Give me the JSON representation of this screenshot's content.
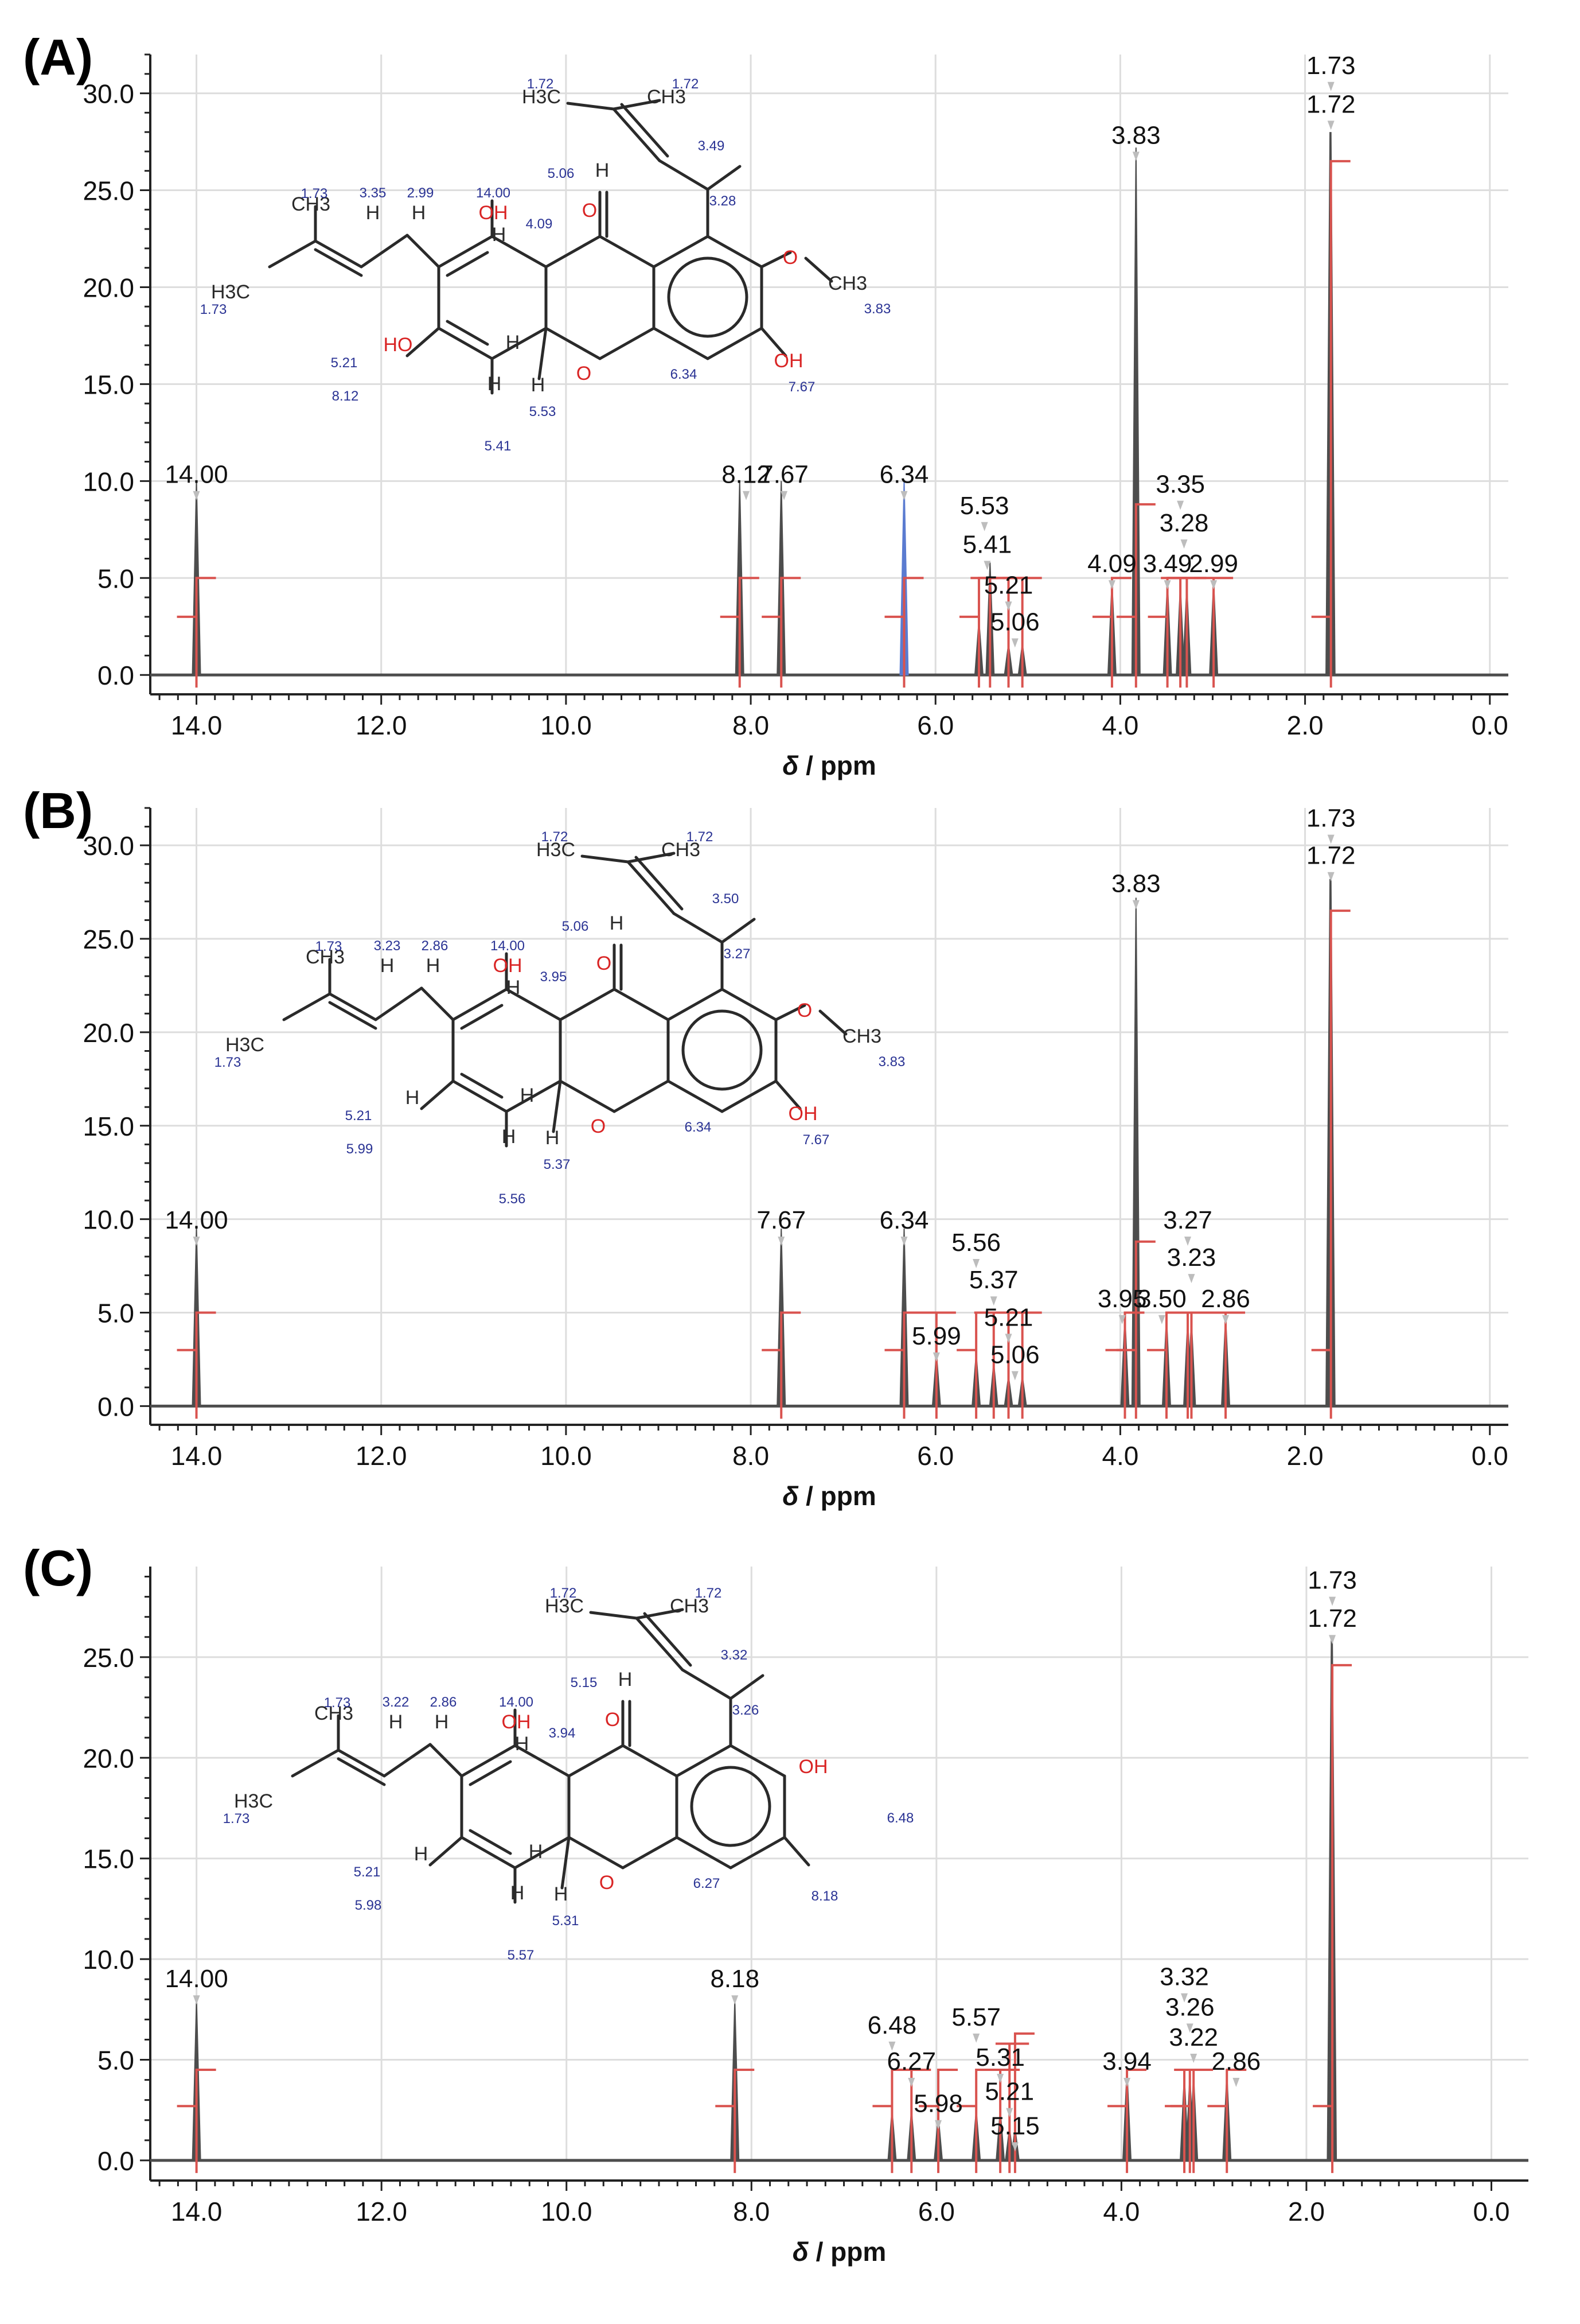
{
  "xlabel_italic": "δ",
  "xlabel_unit": " / ppm",
  "panels": [
    {
      "label": "(A)",
      "chart_data": {
        "type": "line",
        "xlabel": "δ / ppm",
        "xlim": [
          14.5,
          -0.2
        ],
        "ylim": [
          -1,
          32
        ],
        "xticks": [
          "14.0",
          "12.0",
          "10.0",
          "8.0",
          "6.0",
          "4.0",
          "2.0",
          "0.0"
        ],
        "yticks": [
          "0.0",
          "5.0",
          "10.0",
          "15.0",
          "20.0",
          "25.0",
          "30.0"
        ],
        "peaks": [
          {
            "ppm": 14.0,
            "height": 10.0
          },
          {
            "ppm": 8.12,
            "height": 10.0
          },
          {
            "ppm": 7.67,
            "height": 10.0
          },
          {
            "ppm": 6.34,
            "height": 10.0
          },
          {
            "ppm": 5.53,
            "height": 2.8
          },
          {
            "ppm": 5.41,
            "height": 5.8
          },
          {
            "ppm": 5.21,
            "height": 1.6
          },
          {
            "ppm": 5.06,
            "height": 1.6
          },
          {
            "ppm": 4.09,
            "height": 4.8
          },
          {
            "ppm": 3.83,
            "height": 27.2
          },
          {
            "ppm": 3.49,
            "height": 4.8
          },
          {
            "ppm": 3.35,
            "height": 4.6
          },
          {
            "ppm": 3.28,
            "height": 4.6
          },
          {
            "ppm": 2.99,
            "height": 4.8
          },
          {
            "ppm": 1.73,
            "height": 28.0
          },
          {
            "ppm": 1.72,
            "height": 28.0
          }
        ],
        "peak_labels": [
          {
            "text": "14.00",
            "ppm": 14.0,
            "y": 9.9
          },
          {
            "text": "8.12",
            "ppm": 8.05,
            "y": 9.9
          },
          {
            "text": "7.67",
            "ppm": 7.64,
            "y": 9.9
          },
          {
            "text": "6.34",
            "ppm": 6.34,
            "y": 9.9
          },
          {
            "text": "5.53",
            "ppm": 5.47,
            "y": 8.3
          },
          {
            "text": "5.41",
            "ppm": 5.44,
            "y": 6.3
          },
          {
            "text": "5.21",
            "ppm": 5.21,
            "y": 4.2
          },
          {
            "text": "5.06",
            "ppm": 5.14,
            "y": 2.3
          },
          {
            "text": "4.09",
            "ppm": 4.09,
            "y": 5.3
          },
          {
            "text": "3.83",
            "ppm": 3.83,
            "y": 27.4
          },
          {
            "text": "3.49",
            "ppm": 3.49,
            "y": 5.3
          },
          {
            "text": "3.35",
            "ppm": 3.35,
            "y": 9.4
          },
          {
            "text": "3.28",
            "ppm": 3.31,
            "y": 7.4
          },
          {
            "text": "2.99",
            "ppm": 2.99,
            "y": 5.3
          },
          {
            "text": "1.73",
            "ppm": 1.72,
            "y": 31.0
          },
          {
            "text": "1.72",
            "ppm": 1.72,
            "y": 29.0
          }
        ],
        "integrals": [
          {
            "ppm": 14.0,
            "level": 3.0,
            "top": 5.0
          },
          {
            "ppm": 8.12,
            "level": 3.0,
            "top": 5.0
          },
          {
            "ppm": 7.67,
            "level": 3.0,
            "top": 5.0
          },
          {
            "ppm": 6.34,
            "level": 3.0,
            "top": 5.0
          },
          {
            "ppm": 5.53,
            "level": 3.0,
            "top": 5.0
          },
          {
            "ppm": 5.41,
            "level": 5.0,
            "top": 5.0
          },
          {
            "ppm": 5.21,
            "level": 5.0,
            "top": 5.0
          },
          {
            "ppm": 5.06,
            "level": 5.0,
            "top": 5.0
          },
          {
            "ppm": 4.09,
            "level": 3.0,
            "top": 5.0
          },
          {
            "ppm": 3.83,
            "level": 3.0,
            "top": 8.8
          },
          {
            "ppm": 3.49,
            "level": 3.0,
            "top": 5.0
          },
          {
            "ppm": 3.35,
            "level": 5.0,
            "top": 5.0
          },
          {
            "ppm": 3.28,
            "level": 5.0,
            "top": 5.0
          },
          {
            "ppm": 2.99,
            "level": 5.0,
            "top": 5.0
          },
          {
            "ppm": 1.72,
            "level": 3.0,
            "top": 26.5
          }
        ]
      },
      "molecule": {
        "atom_labels": [
          {
            "text": "CH3"
          },
          {
            "text": "H3C"
          },
          {
            "text": "H"
          },
          {
            "text": "H"
          },
          {
            "text": "OH"
          },
          {
            "text": "H"
          },
          {
            "text": "HO"
          },
          {
            "text": "H"
          },
          {
            "text": "H"
          },
          {
            "text": "O"
          },
          {
            "text": "O"
          },
          {
            "text": "H"
          },
          {
            "text": "H"
          },
          {
            "text": "H3C"
          },
          {
            "text": "CH3"
          },
          {
            "text": "O"
          },
          {
            "text": "CH3"
          },
          {
            "text": "OH"
          }
        ],
        "shift_labels": [
          "1.73",
          "1.73",
          "3.35",
          "2.99",
          "14.00",
          "4.09",
          "5.21",
          "8.12",
          "5.41",
          "5.53",
          "6.34",
          "1.72",
          "1.72",
          "5.06",
          "3.49",
          "3.28",
          "3.83",
          "7.67"
        ]
      }
    },
    {
      "label": "(B)",
      "chart_data": {
        "type": "line",
        "xlabel": "δ / ppm",
        "xlim": [
          14.5,
          -0.2
        ],
        "ylim": [
          -1,
          32
        ],
        "xticks": [
          "14.0",
          "12.0",
          "10.0",
          "8.0",
          "6.0",
          "4.0",
          "2.0",
          "0.0"
        ],
        "yticks": [
          "0.0",
          "5.0",
          "10.0",
          "15.0",
          "20.0",
          "25.0",
          "30.0"
        ],
        "peaks": [
          {
            "ppm": 14.0,
            "height": 9.5
          },
          {
            "ppm": 7.67,
            "height": 9.5
          },
          {
            "ppm": 6.34,
            "height": 9.5
          },
          {
            "ppm": 5.99,
            "height": 2.8
          },
          {
            "ppm": 5.56,
            "height": 2.8
          },
          {
            "ppm": 5.37,
            "height": 2.3
          },
          {
            "ppm": 5.21,
            "height": 1.6
          },
          {
            "ppm": 5.06,
            "height": 1.6
          },
          {
            "ppm": 3.95,
            "height": 4.8
          },
          {
            "ppm": 3.83,
            "height": 27.2
          },
          {
            "ppm": 3.5,
            "height": 4.8
          },
          {
            "ppm": 3.27,
            "height": 4.6
          },
          {
            "ppm": 3.23,
            "height": 4.6
          },
          {
            "ppm": 2.86,
            "height": 4.8
          },
          {
            "ppm": 1.73,
            "height": 28.2
          },
          {
            "ppm": 1.72,
            "height": 28.2
          }
        ],
        "peak_labels": [
          {
            "text": "14.00",
            "ppm": 14.0,
            "y": 9.5
          },
          {
            "text": "7.67",
            "ppm": 7.67,
            "y": 9.5
          },
          {
            "text": "6.34",
            "ppm": 6.34,
            "y": 9.5
          },
          {
            "text": "5.99",
            "ppm": 5.99,
            "y": 3.3
          },
          {
            "text": "5.56",
            "ppm": 5.56,
            "y": 8.3
          },
          {
            "text": "5.37",
            "ppm": 5.37,
            "y": 6.3
          },
          {
            "text": "5.21",
            "ppm": 5.21,
            "y": 4.3
          },
          {
            "text": "5.06",
            "ppm": 5.14,
            "y": 2.3
          },
          {
            "text": "3.95",
            "ppm": 3.98,
            "y": 5.3
          },
          {
            "text": "3.50",
            "ppm": 3.55,
            "y": 5.3
          },
          {
            "text": "3.83",
            "ppm": 3.83,
            "y": 27.5
          },
          {
            "text": "3.27",
            "ppm": 3.27,
            "y": 9.5
          },
          {
            "text": "3.23",
            "ppm": 3.23,
            "y": 7.5
          },
          {
            "text": "2.86",
            "ppm": 2.86,
            "y": 5.3
          },
          {
            "text": "1.73",
            "ppm": 1.72,
            "y": 31.0
          },
          {
            "text": "1.72",
            "ppm": 1.72,
            "y": 29.0
          }
        ],
        "integrals": [
          {
            "ppm": 14.0,
            "level": 3.0,
            "top": 5.0
          },
          {
            "ppm": 7.67,
            "level": 3.0,
            "top": 5.0
          },
          {
            "ppm": 6.34,
            "level": 3.0,
            "top": 5.0
          },
          {
            "ppm": 5.99,
            "level": 5.0,
            "top": 5.0
          },
          {
            "ppm": 5.56,
            "level": 3.0,
            "top": 5.0
          },
          {
            "ppm": 5.37,
            "level": 5.0,
            "top": 5.0
          },
          {
            "ppm": 5.21,
            "level": 5.0,
            "top": 5.0
          },
          {
            "ppm": 5.06,
            "level": 5.0,
            "top": 5.0
          },
          {
            "ppm": 3.95,
            "level": 3.0,
            "top": 5.0
          },
          {
            "ppm": 3.83,
            "level": 3.0,
            "top": 8.8
          },
          {
            "ppm": 3.5,
            "level": 3.0,
            "top": 5.0
          },
          {
            "ppm": 3.27,
            "level": 5.0,
            "top": 5.0
          },
          {
            "ppm": 3.23,
            "level": 5.0,
            "top": 5.0
          },
          {
            "ppm": 2.86,
            "level": 5.0,
            "top": 5.0
          },
          {
            "ppm": 1.72,
            "level": 3.0,
            "top": 26.5
          }
        ]
      },
      "molecule": {
        "atom_labels": [
          {
            "text": "CH3"
          },
          {
            "text": "H3C"
          },
          {
            "text": "H"
          },
          {
            "text": "H"
          },
          {
            "text": "OH"
          },
          {
            "text": "H"
          },
          {
            "text": "H"
          },
          {
            "text": "H"
          },
          {
            "text": "H"
          },
          {
            "text": "O"
          },
          {
            "text": "O"
          },
          {
            "text": "H"
          },
          {
            "text": "H"
          },
          {
            "text": "H3C"
          },
          {
            "text": "CH3"
          },
          {
            "text": "O"
          },
          {
            "text": "CH3"
          },
          {
            "text": "OH"
          }
        ],
        "shift_labels": [
          "1.73",
          "1.73",
          "3.23",
          "2.86",
          "14.00",
          "3.95",
          "5.21",
          "5.99",
          "5.56",
          "5.37",
          "6.34",
          "1.72",
          "1.72",
          "5.06",
          "3.50",
          "3.27",
          "3.83",
          "7.67"
        ]
      }
    },
    {
      "label": "(C)",
      "chart_data": {
        "type": "line",
        "xlabel": "δ / ppm",
        "xlim": [
          14.5,
          -0.4
        ],
        "ylim": [
          -1,
          29.5
        ],
        "xticks": [
          "14.0",
          "12.0",
          "10.0",
          "8.0",
          "6.0",
          "4.0",
          "2.0",
          "0.0"
        ],
        "yticks": [
          "0.0",
          "5.0",
          "10.0",
          "15.0",
          "20.0",
          "25.0"
        ],
        "peaks": [
          {
            "ppm": 14.0,
            "height": 8.0
          },
          {
            "ppm": 8.18,
            "height": 8.0
          },
          {
            "ppm": 6.48,
            "height": 2.5
          },
          {
            "ppm": 6.27,
            "height": 2.5
          },
          {
            "ppm": 5.98,
            "height": 2.2
          },
          {
            "ppm": 5.57,
            "height": 2.5
          },
          {
            "ppm": 5.31,
            "height": 2.5
          },
          {
            "ppm": 5.21,
            "height": 1.6
          },
          {
            "ppm": 5.15,
            "height": 1.6
          },
          {
            "ppm": 3.94,
            "height": 4.5
          },
          {
            "ppm": 3.32,
            "height": 4.2
          },
          {
            "ppm": 3.26,
            "height": 4.2
          },
          {
            "ppm": 3.22,
            "height": 4.2
          },
          {
            "ppm": 2.86,
            "height": 4.3
          },
          {
            "ppm": 1.73,
            "height": 26.0
          },
          {
            "ppm": 1.72,
            "height": 26.0
          }
        ],
        "peak_labels": [
          {
            "text": "14.00",
            "ppm": 14.0,
            "y": 8.6
          },
          {
            "text": "8.18",
            "ppm": 8.18,
            "y": 8.6
          },
          {
            "text": "6.48",
            "ppm": 6.48,
            "y": 6.3
          },
          {
            "text": "6.27",
            "ppm": 6.27,
            "y": 4.5
          },
          {
            "text": "5.98",
            "ppm": 5.98,
            "y": 2.4
          },
          {
            "text": "5.57",
            "ppm": 5.57,
            "y": 6.7
          },
          {
            "text": "5.31",
            "ppm": 5.31,
            "y": 4.7
          },
          {
            "text": "5.21",
            "ppm": 5.21,
            "y": 3.0
          },
          {
            "text": "5.15",
            "ppm": 5.15,
            "y": 1.3
          },
          {
            "text": "3.94",
            "ppm": 3.94,
            "y": 4.5
          },
          {
            "text": "3.32",
            "ppm": 3.32,
            "y": 8.7
          },
          {
            "text": "3.26",
            "ppm": 3.26,
            "y": 7.2
          },
          {
            "text": "3.22",
            "ppm": 3.22,
            "y": 5.7
          },
          {
            "text": "2.86",
            "ppm": 2.76,
            "y": 4.5
          },
          {
            "text": "1.73",
            "ppm": 1.72,
            "y": 28.4
          },
          {
            "text": "1.72",
            "ppm": 1.72,
            "y": 26.5
          }
        ],
        "integrals": [
          {
            "ppm": 14.0,
            "level": 2.7,
            "top": 4.5
          },
          {
            "ppm": 8.18,
            "level": 2.7,
            "top": 4.5
          },
          {
            "ppm": 6.48,
            "level": 2.7,
            "top": 4.5
          },
          {
            "ppm": 6.27,
            "level": 4.5,
            "top": 4.5
          },
          {
            "ppm": 5.98,
            "level": 2.7,
            "top": 4.5
          },
          {
            "ppm": 5.57,
            "level": 2.7,
            "top": 4.5
          },
          {
            "ppm": 5.31,
            "level": 4.5,
            "top": 4.5
          },
          {
            "ppm": 5.21,
            "level": 4.5,
            "top": 5.8
          },
          {
            "ppm": 5.15,
            "level": 5.8,
            "top": 6.3
          },
          {
            "ppm": 3.94,
            "level": 2.7,
            "top": 4.5
          },
          {
            "ppm": 3.32,
            "level": 2.7,
            "top": 4.5
          },
          {
            "ppm": 3.26,
            "level": 2.7,
            "top": 4.5
          },
          {
            "ppm": 3.22,
            "level": 4.5,
            "top": 4.5
          },
          {
            "ppm": 2.86,
            "level": 2.7,
            "top": 4.5
          },
          {
            "ppm": 1.72,
            "level": 2.7,
            "top": 24.6
          }
        ]
      },
      "molecule": {
        "atom_labels": [
          {
            "text": "CH3"
          },
          {
            "text": "H3C"
          },
          {
            "text": "H"
          },
          {
            "text": "H"
          },
          {
            "text": "OH"
          },
          {
            "text": "H"
          },
          {
            "text": "H"
          },
          {
            "text": "H"
          },
          {
            "text": "H"
          },
          {
            "text": "O"
          },
          {
            "text": "O"
          },
          {
            "text": "H"
          },
          {
            "text": "H"
          },
          {
            "text": "H3C"
          },
          {
            "text": "CH3"
          },
          {
            "text": "OH"
          }
        ],
        "shift_labels": [
          "1.73",
          "1.73",
          "3.22",
          "2.86",
          "14.00",
          "3.94",
          "5.21",
          "5.98",
          "5.57",
          "5.31",
          "6.27",
          "1.72",
          "1.72",
          "5.15",
          "3.32",
          "3.26",
          "6.48",
          "8.18"
        ]
      }
    }
  ],
  "colors": {
    "spectrum": "#4d4d4d",
    "integral": "#d9534f",
    "grid": "#dddddd",
    "axis": "#222222",
    "label": "#111111",
    "label_pointer": "#bdbdbd",
    "bond": "#2a2a2a",
    "hetero": "#d92525",
    "shift_text": "#2a3394",
    "highlight_peak": "#5a7bd0"
  }
}
